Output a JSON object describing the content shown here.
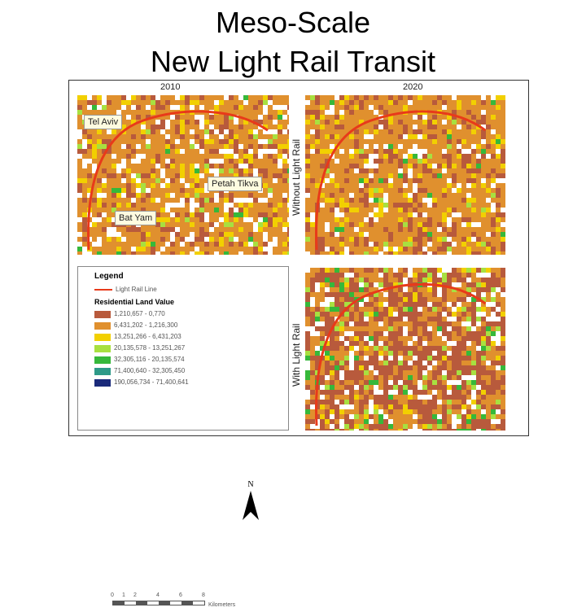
{
  "title_line1": "Meso-Scale",
  "title_line2": "New Light Rail Transit",
  "maps": {
    "col_2010": "2010",
    "col_2020": "2020",
    "row_without": "Without Light Rail",
    "row_with": "With Light Rail"
  },
  "places": {
    "tel_aviv": "Tel Aviv",
    "petah_tikva": "Petah Tikva",
    "bat_yam": "Bat Yam"
  },
  "legend": {
    "title": "Legend",
    "line_label": "Light Rail Line",
    "subtitle": "Residential Land Value",
    "classes": [
      {
        "label": "1,210,657 - 0,770",
        "color": "#b85a3c"
      },
      {
        "label": "6,431,202 - 1,216,300",
        "color": "#e0902e"
      },
      {
        "label": "13,251,266 - 6,431,203",
        "color": "#f2d000"
      },
      {
        "label": "20,135,578 - 13,251,267",
        "color": "#a8e040"
      },
      {
        "label": "32,305,116 - 20,135,574",
        "color": "#36b83a"
      },
      {
        "label": "71,400,640 - 32,305,450",
        "color": "#2e9a88"
      },
      {
        "label": "190,056,734 - 71,400,641",
        "color": "#1a2a7a"
      }
    ],
    "north": "N",
    "scale_ticks": [
      "0",
      "1",
      "2",
      "4",
      "6",
      "8"
    ],
    "scale_unit": "Kilometers"
  },
  "colors": {
    "rail": "#e83a1a",
    "white": "#ffffff"
  }
}
